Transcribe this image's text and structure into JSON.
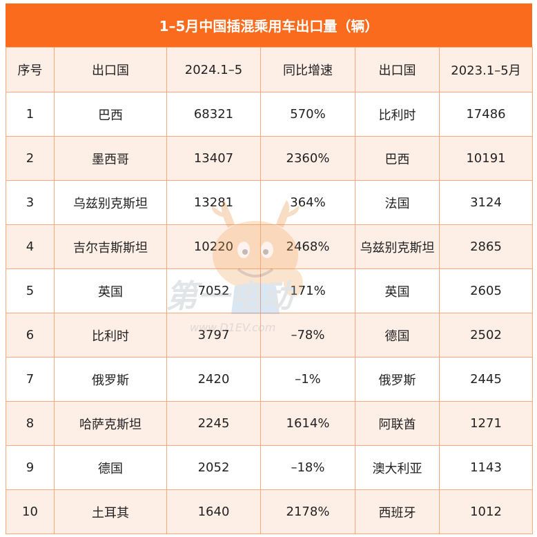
{
  "title": "1–5月中国插混乘用车出口量（辆）",
  "headers": [
    "序号",
    "出口国",
    "2024.1–5",
    "同比增速",
    "出口国",
    "2023.1–5月"
  ],
  "rows": [
    [
      "1",
      "巴西",
      "68321",
      "570%",
      "比利时",
      "17486"
    ],
    [
      "2",
      "墨西哥",
      "13407",
      "2360%",
      "巴西",
      "10191"
    ],
    [
      "3",
      "乌兹别克斯坦",
      "13281",
      "364%",
      "法国",
      "3124"
    ],
    [
      "4",
      "吉尔吉斯斯坦",
      "10220",
      "2468%",
      "乌兹别克斯坦",
      "2865"
    ],
    [
      "5",
      "英国",
      "7052",
      "171%",
      "英国",
      "2605"
    ],
    [
      "6",
      "比利时",
      "3797",
      "–78%",
      "德国",
      "2502"
    ],
    [
      "7",
      "俄罗斯",
      "2420",
      "–1%",
      "俄罗斯",
      "2445"
    ],
    [
      "8",
      "哈萨克斯坦",
      "2245",
      "1614%",
      "阿联酋",
      "1271"
    ],
    [
      "9",
      "德国",
      "2052",
      "–18%",
      "澳大利亚",
      "1143"
    ],
    [
      "10",
      "土耳其",
      "1640",
      "2178%",
      "西班牙",
      "1012"
    ]
  ],
  "watermark": {
    "brand": "第一电动",
    "url": "www.D1EV.com",
    "mascot": "deer-mascot-icon"
  },
  "colors": {
    "title_bg": "#fb6b1d",
    "row_tint": "#fdeee6",
    "border": "#f7a87a"
  }
}
